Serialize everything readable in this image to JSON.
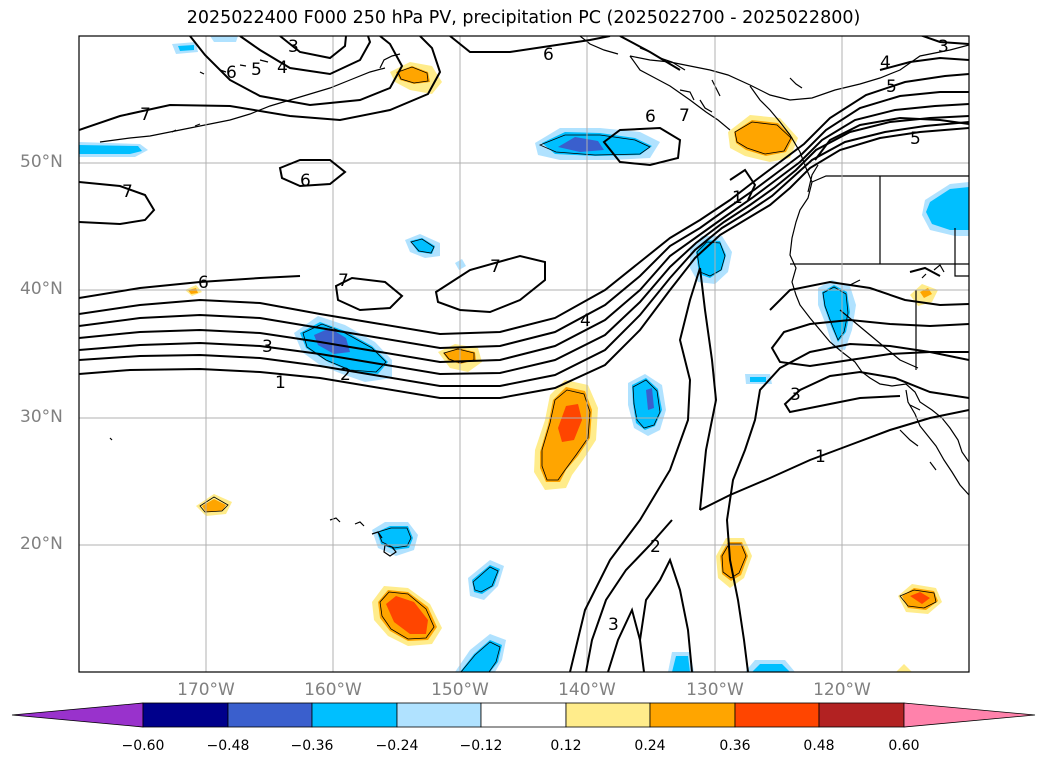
{
  "title": "2025022400 F000 250 hPa PV, precipitation PC (2025022700 - 2025022800)",
  "lat_labels": [
    "50°N",
    "40°N",
    "30°N",
    "20°N"
  ],
  "lon_labels": [
    "170°W",
    "160°W",
    "150°W",
    "140°W",
    "130°W",
    "120°W"
  ],
  "contour_labels": [
    "3",
    "6",
    "5",
    "4",
    "3",
    "7",
    "6",
    "6",
    "7",
    "4",
    "5",
    "5",
    "7",
    "6",
    "1",
    "7",
    "6",
    "7",
    "4",
    "3",
    "2",
    "1",
    "3",
    "1",
    "2",
    "3"
  ],
  "colorbar": {
    "ticks": [
      "−0.60",
      "−0.48",
      "−0.36",
      "−0.24",
      "−0.12",
      "0.12",
      "0.24",
      "0.36",
      "0.48",
      "0.60"
    ],
    "colors": [
      "#9932cc",
      "#00008b",
      "#3a5fcd",
      "#00bfff",
      "#b0e2ff",
      "#ffffff",
      "#ffec8b",
      "#ffa500",
      "#ff4500",
      "#b22222",
      "#ff82ab"
    ]
  }
}
